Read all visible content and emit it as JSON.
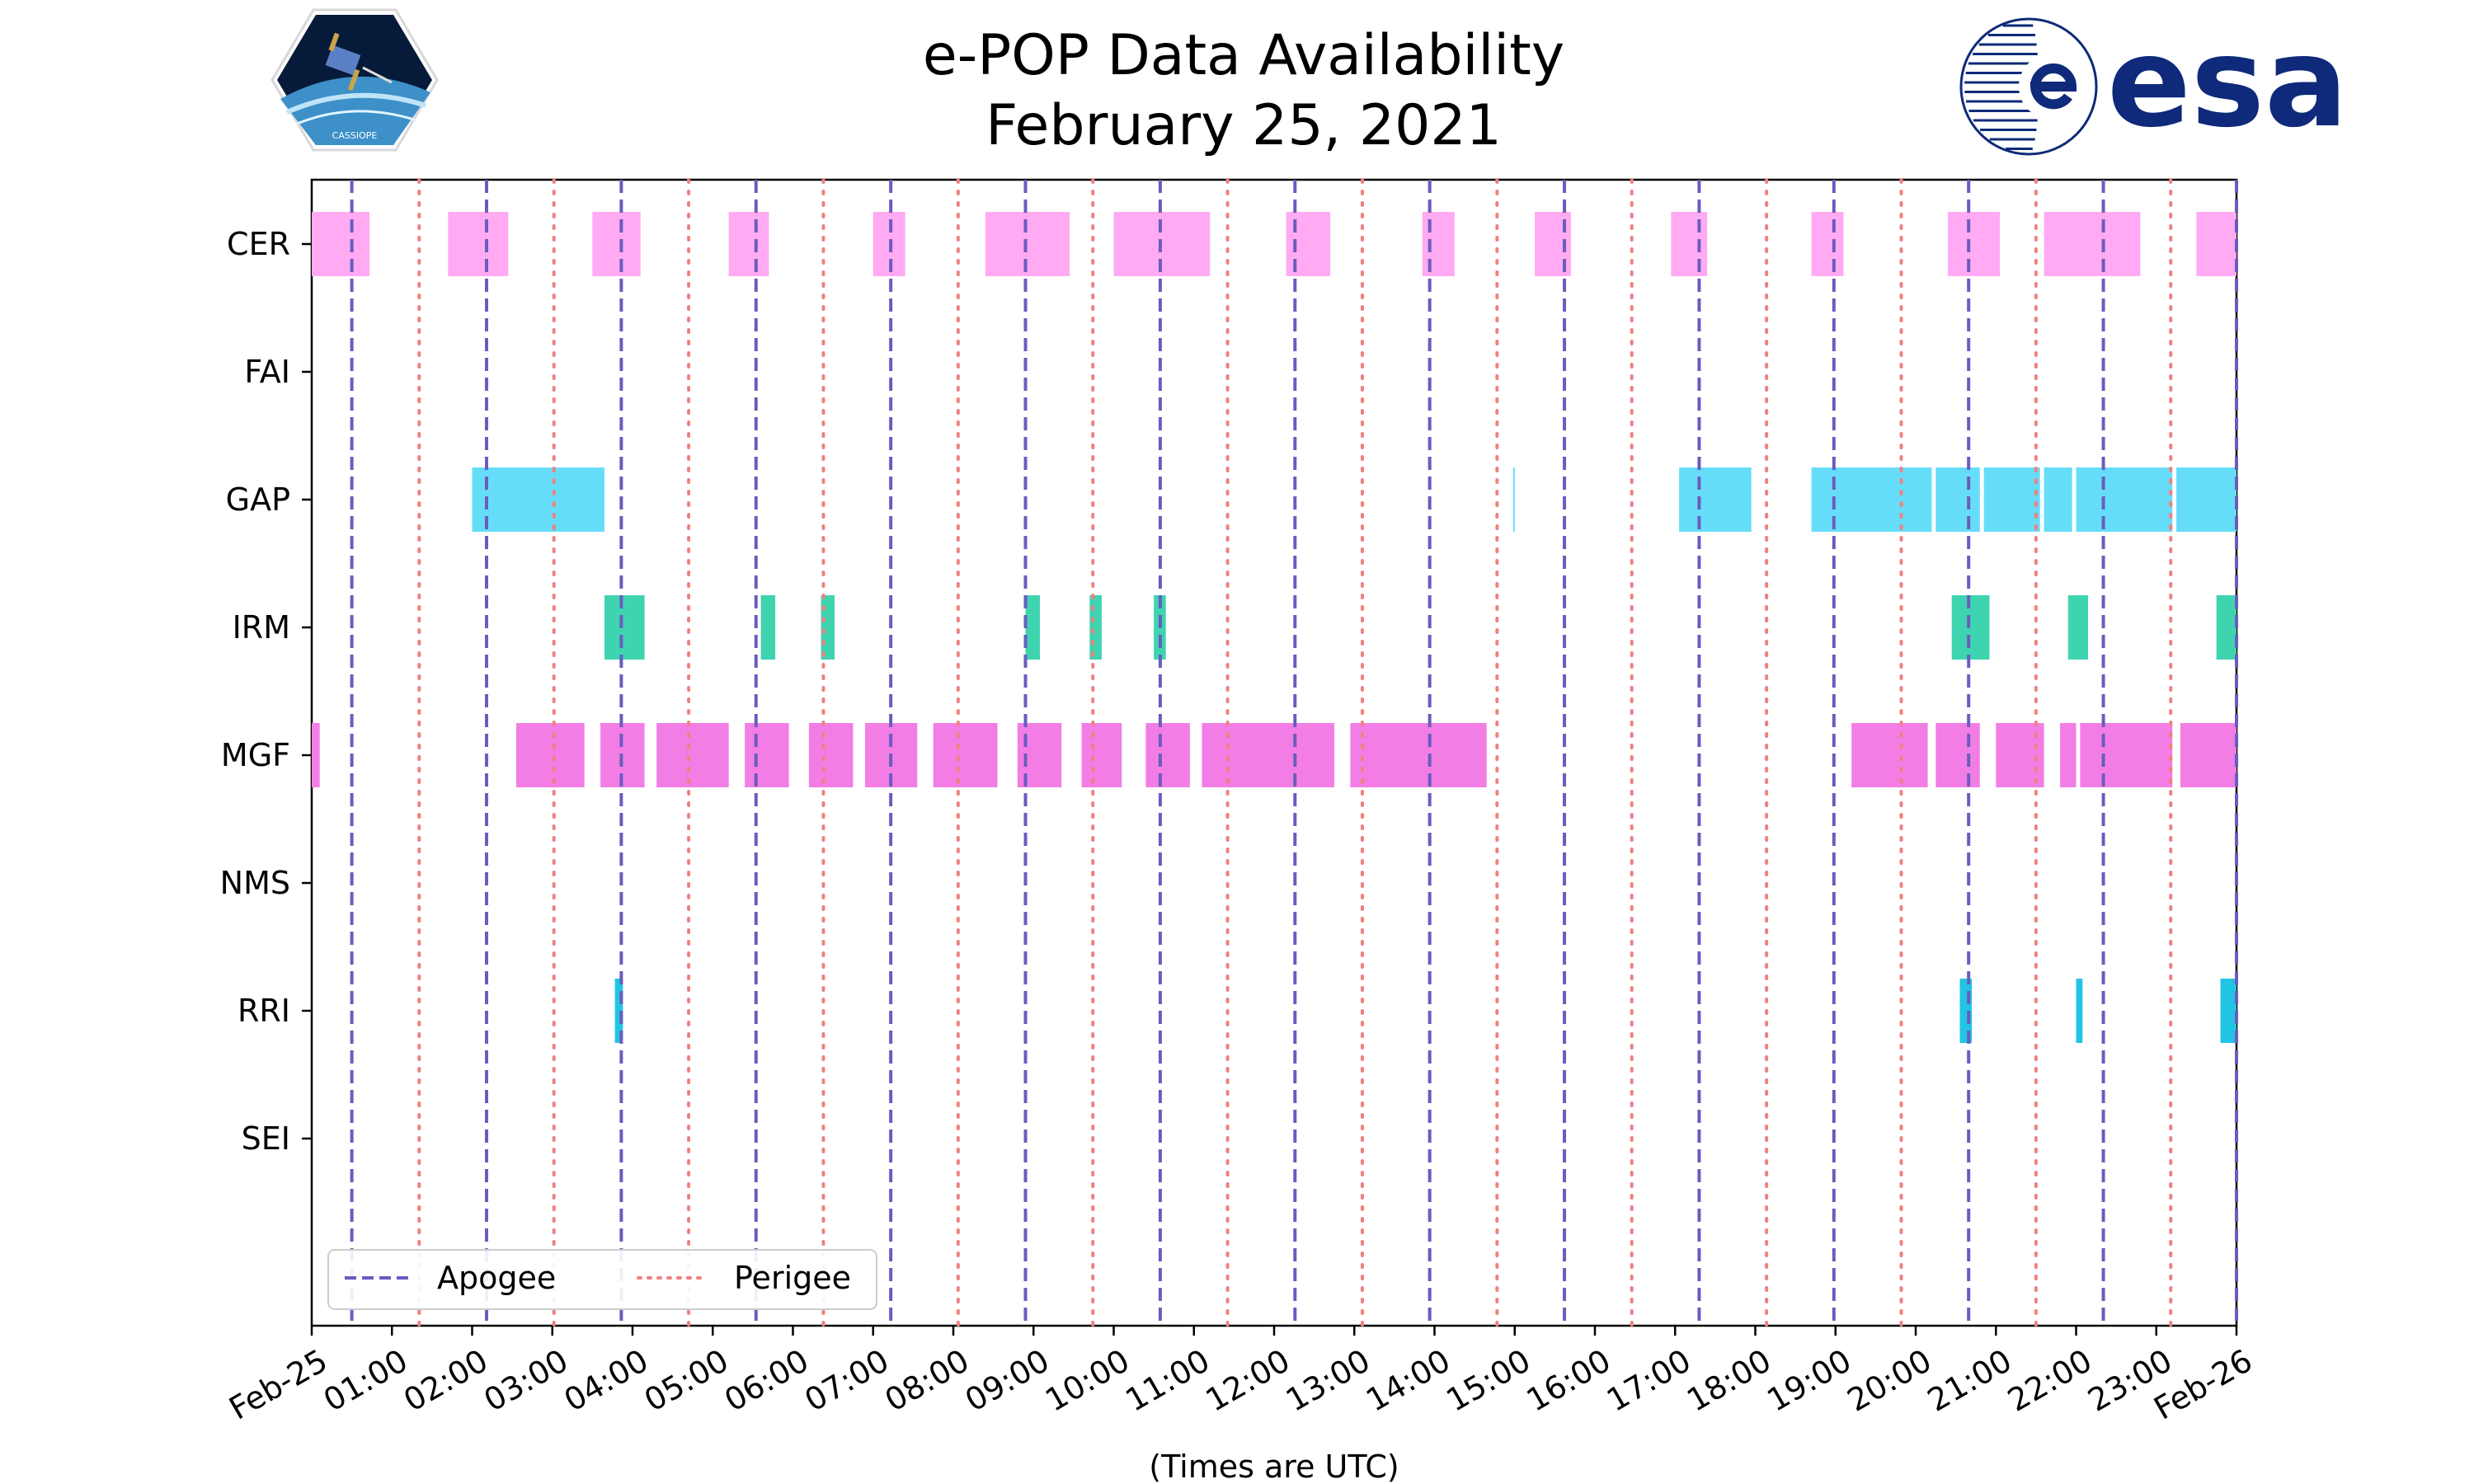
{
  "chart_data": {
    "type": "timeline",
    "title": "e-POP Data Availability",
    "subtitle": "February 25, 2021",
    "xlabel": "(Times are UTC)",
    "xlim": [
      0,
      24
    ],
    "x_ticks": [
      {
        "value": 0,
        "label": "Feb-25"
      },
      {
        "value": 1,
        "label": "01:00"
      },
      {
        "value": 2,
        "label": "02:00"
      },
      {
        "value": 3,
        "label": "03:00"
      },
      {
        "value": 4,
        "label": "04:00"
      },
      {
        "value": 5,
        "label": "05:00"
      },
      {
        "value": 6,
        "label": "06:00"
      },
      {
        "value": 7,
        "label": "07:00"
      },
      {
        "value": 8,
        "label": "08:00"
      },
      {
        "value": 9,
        "label": "09:00"
      },
      {
        "value": 10,
        "label": "10:00"
      },
      {
        "value": 11,
        "label": "11:00"
      },
      {
        "value": 12,
        "label": "12:00"
      },
      {
        "value": 13,
        "label": "13:00"
      },
      {
        "value": 14,
        "label": "14:00"
      },
      {
        "value": 15,
        "label": "15:00"
      },
      {
        "value": 16,
        "label": "16:00"
      },
      {
        "value": 17,
        "label": "17:00"
      },
      {
        "value": 18,
        "label": "18:00"
      },
      {
        "value": 19,
        "label": "19:00"
      },
      {
        "value": 20,
        "label": "20:00"
      },
      {
        "value": 21,
        "label": "21:00"
      },
      {
        "value": 22,
        "label": "22:00"
      },
      {
        "value": 23,
        "label": "23:00"
      },
      {
        "value": 24,
        "label": "Feb-26"
      }
    ],
    "categories": [
      "CER",
      "FAI",
      "GAP",
      "IRM",
      "MGF",
      "NMS",
      "RRI",
      "SEI"
    ],
    "series": [
      {
        "name": "CER",
        "color": "#ffaaf3",
        "intervals": [
          [
            0.0,
            0.72
          ],
          [
            1.7,
            2.45
          ],
          [
            3.5,
            4.1
          ],
          [
            5.2,
            5.7
          ],
          [
            7.0,
            7.4
          ],
          [
            8.4,
            9.45
          ],
          [
            10.0,
            11.2
          ],
          [
            12.15,
            12.7
          ],
          [
            13.85,
            14.25
          ],
          [
            15.25,
            15.7
          ],
          [
            16.95,
            17.4
          ],
          [
            18.7,
            19.1
          ],
          [
            20.4,
            21.05
          ],
          [
            21.6,
            22.8
          ],
          [
            23.5,
            24.0
          ]
        ]
      },
      {
        "name": "FAI",
        "color": "#888888",
        "intervals": []
      },
      {
        "name": "GAP",
        "color": "#66ddf8",
        "intervals": [
          [
            2.0,
            3.65
          ],
          [
            14.98,
            15.0
          ],
          [
            17.05,
            17.95
          ],
          [
            18.7,
            20.2
          ],
          [
            20.25,
            20.8
          ],
          [
            20.85,
            21.55
          ],
          [
            21.6,
            21.95
          ],
          [
            22.0,
            23.2
          ],
          [
            23.25,
            24.0
          ]
        ]
      },
      {
        "name": "IRM",
        "color": "#3fd4b0",
        "intervals": [
          [
            3.65,
            4.15
          ],
          [
            5.6,
            5.78
          ],
          [
            6.35,
            6.52
          ],
          [
            8.9,
            9.08
          ],
          [
            9.7,
            9.85
          ],
          [
            10.5,
            10.65
          ],
          [
            20.45,
            20.92
          ],
          [
            21.9,
            22.15
          ],
          [
            23.75,
            24.0
          ]
        ]
      },
      {
        "name": "MGF",
        "color": "#f27ee5",
        "intervals": [
          [
            0.0,
            0.1
          ],
          [
            2.55,
            3.4
          ],
          [
            3.6,
            4.15
          ],
          [
            4.3,
            5.2
          ],
          [
            5.4,
            5.95
          ],
          [
            6.2,
            6.75
          ],
          [
            6.9,
            7.55
          ],
          [
            7.75,
            8.55
          ],
          [
            8.8,
            9.35
          ],
          [
            9.6,
            10.1
          ],
          [
            10.4,
            10.95
          ],
          [
            11.1,
            12.75
          ],
          [
            12.95,
            14.65
          ],
          [
            19.2,
            20.15
          ],
          [
            20.25,
            20.8
          ],
          [
            21.0,
            21.6
          ],
          [
            21.8,
            22.0
          ],
          [
            22.05,
            23.2
          ],
          [
            23.3,
            24.0
          ]
        ]
      },
      {
        "name": "NMS",
        "color": "#888888",
        "intervals": []
      },
      {
        "name": "RRI",
        "color": "#22c4e4",
        "intervals": [
          [
            3.78,
            3.88
          ],
          [
            20.55,
            20.7
          ],
          [
            22.0,
            22.08
          ],
          [
            23.8,
            24.0
          ]
        ]
      },
      {
        "name": "SEI",
        "color": "#888888",
        "intervals": []
      }
    ],
    "apogee_times": [
      0.5,
      2.18,
      3.86,
      5.54,
      7.22,
      8.9,
      10.58,
      12.26,
      13.94,
      15.62,
      17.3,
      18.98,
      20.66,
      22.34,
      24.0
    ],
    "perigee_times": [
      1.34,
      3.02,
      4.7,
      6.38,
      8.06,
      9.74,
      11.42,
      13.1,
      14.78,
      16.46,
      18.14,
      19.82,
      21.5,
      23.18
    ],
    "legend": {
      "position": "lower-left",
      "entries": [
        {
          "label": "Apogee",
          "style": "dashed",
          "color": "#6a5cbf"
        },
        {
          "label": "Perigee",
          "style": "dotted",
          "color": "#f08080"
        }
      ]
    }
  },
  "logos": {
    "left_badge_text": "CASSIOPE",
    "right_logo_text": "esa",
    "esa_color": "#0f2a7a"
  }
}
